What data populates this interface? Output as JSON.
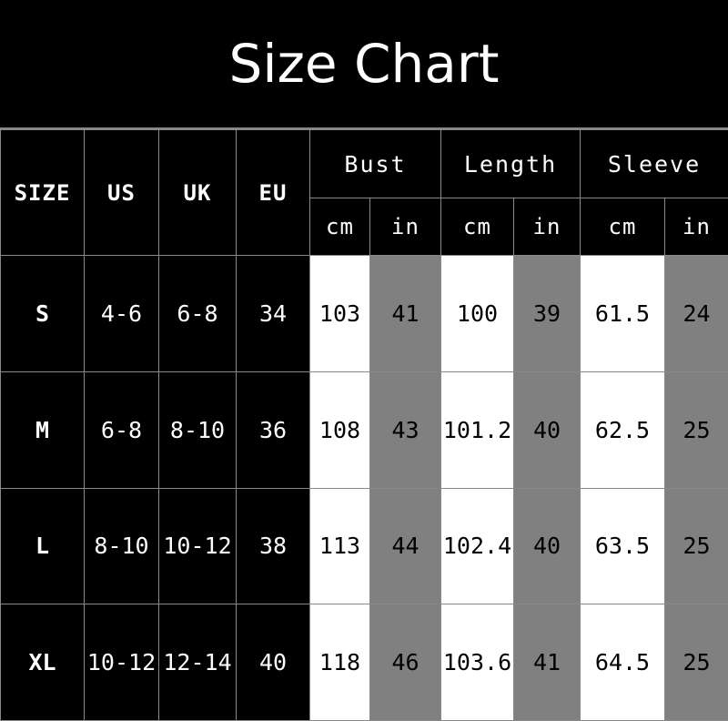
{
  "title": "Size Chart",
  "headers": {
    "size": "SIZE",
    "us": "US",
    "uk": "UK",
    "eu": "EU",
    "bust": "Bust",
    "length": "Length",
    "sleeve": "Sleeve",
    "cm": "cm",
    "in": "in"
  },
  "rows": [
    {
      "size": "S",
      "us": "4-6",
      "uk": "6-8",
      "eu": "34",
      "bust_cm": "103",
      "bust_in": "41",
      "length_cm": "100",
      "length_in": "39",
      "sleeve_cm": "61.5",
      "sleeve_in": "24"
    },
    {
      "size": "M",
      "us": "6-8",
      "uk": "8-10",
      "eu": "36",
      "bust_cm": "108",
      "bust_in": "43",
      "length_cm": "101.2",
      "length_in": "40",
      "sleeve_cm": "62.5",
      "sleeve_in": "25"
    },
    {
      "size": "L",
      "us": "8-10",
      "uk": "10-12",
      "eu": "38",
      "bust_cm": "113",
      "bust_in": "44",
      "length_cm": "102.4",
      "length_in": "40",
      "sleeve_cm": "63.5",
      "sleeve_in": "25"
    },
    {
      "size": "XL",
      "us": "10-12",
      "uk": "12-14",
      "eu": "40",
      "bust_cm": "118",
      "bust_in": "46",
      "length_cm": "103.6",
      "length_in": "41",
      "sleeve_cm": "64.5",
      "sleeve_in": "25"
    }
  ],
  "colors": {
    "background": "#000000",
    "cm_cell": "#ffffff",
    "in_cell": "#808080",
    "grid": "#888888"
  }
}
